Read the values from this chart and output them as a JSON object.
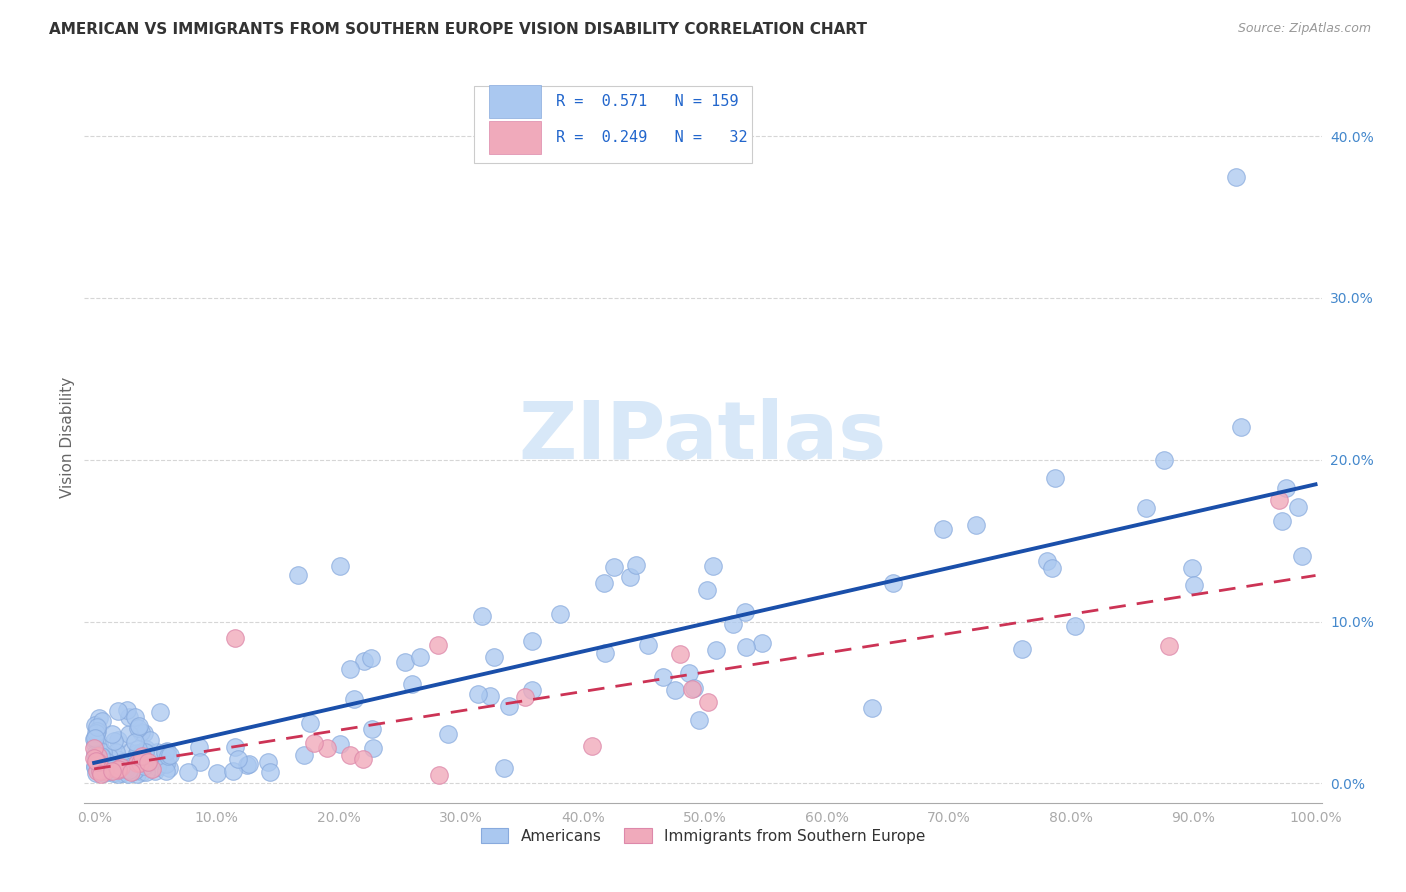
{
  "title": "AMERICAN VS IMMIGRANTS FROM SOUTHERN EUROPE VISION DISABILITY CORRELATION CHART",
  "source": "Source: ZipAtlas.com",
  "ylabel": "Vision Disability",
  "legend_labels": [
    "Americans",
    "Immigrants from Southern Europe"
  ],
  "r_american": 0.571,
  "n_american": 159,
  "r_immigrant": 0.249,
  "n_immigrant": 32,
  "blue_color": "#aac8f0",
  "blue_edge_color": "#88aadd",
  "pink_color": "#f0aabb",
  "pink_edge_color": "#dd88aa",
  "blue_line_color": "#1a4faa",
  "pink_line_color": "#cc3355",
  "watermark_color": "#d8e8f8",
  "title_color": "#333333",
  "source_color": "#999999",
  "ylabel_color": "#666666",
  "tick_color": "#4488cc",
  "grid_color": "#cccccc",
  "axis_color": "#aaaaaa",
  "legend_text_color": "#333333",
  "legend_value_color": "#2266cc",
  "ylim_max": 0.44,
  "xlim_max": 1.005
}
